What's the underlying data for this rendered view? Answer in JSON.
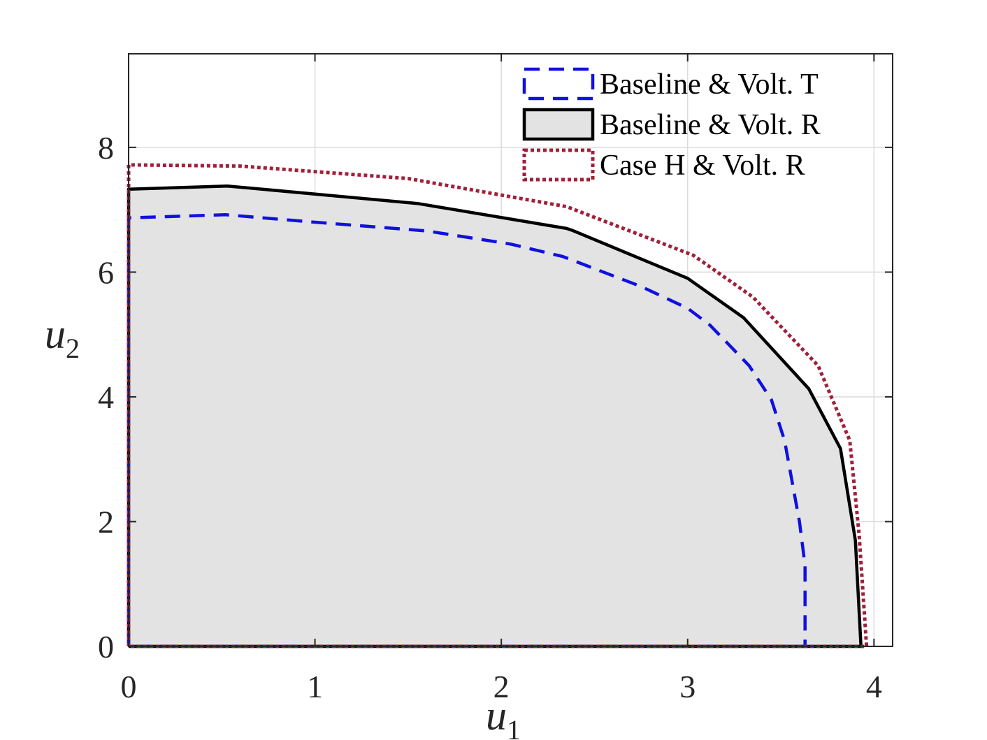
{
  "chart_data": {
    "type": "area",
    "title": "",
    "xlabel": {
      "base": "u",
      "sub": "1"
    },
    "ylabel": {
      "base": "u",
      "sub": "2"
    },
    "xlim": [
      0,
      4.1
    ],
    "ylim": [
      0,
      9.5
    ],
    "xticks": [
      0,
      1,
      2,
      3,
      4
    ],
    "yticks": [
      0,
      2,
      4,
      6,
      8
    ],
    "grid": true,
    "legend_position": "top-right",
    "series": [
      {
        "name": "Baseline & Volt. T",
        "style": "dashed",
        "color": "#1010e0",
        "fill": "none",
        "points": [
          [
            0,
            0
          ],
          [
            0,
            6.87
          ],
          [
            0.52,
            6.92
          ],
          [
            1.0,
            6.8
          ],
          [
            1.6,
            6.66
          ],
          [
            2.05,
            6.45
          ],
          [
            2.33,
            6.25
          ],
          [
            2.75,
            5.77
          ],
          [
            3.0,
            5.42
          ],
          [
            3.12,
            5.15
          ],
          [
            3.33,
            4.5
          ],
          [
            3.45,
            3.95
          ],
          [
            3.52,
            3.3
          ],
          [
            3.6,
            2.0
          ],
          [
            3.63,
            1.3
          ],
          [
            3.63,
            0
          ],
          [
            0,
            0
          ]
        ]
      },
      {
        "name": "Baseline & Volt. R",
        "style": "solid",
        "color": "#000000",
        "fill": "#e3e3e3",
        "points": [
          [
            0,
            0
          ],
          [
            0,
            7.33
          ],
          [
            0.53,
            7.38
          ],
          [
            1.55,
            7.1
          ],
          [
            2.35,
            6.7
          ],
          [
            2.38,
            6.67
          ],
          [
            3.0,
            5.9
          ],
          [
            3.3,
            5.27
          ],
          [
            3.65,
            4.13
          ],
          [
            3.82,
            3.17
          ],
          [
            3.9,
            1.7
          ],
          [
            3.93,
            0
          ],
          [
            0,
            0
          ]
        ]
      },
      {
        "name": "Case H & Volt. R",
        "style": "dotted",
        "color": "#a0203a",
        "fill": "none",
        "points": [
          [
            0,
            0
          ],
          [
            0,
            7.72
          ],
          [
            0.6,
            7.7
          ],
          [
            1.5,
            7.5
          ],
          [
            2.35,
            7.05
          ],
          [
            3.03,
            6.27
          ],
          [
            3.35,
            5.6
          ],
          [
            3.7,
            4.5
          ],
          [
            3.87,
            3.3
          ],
          [
            3.92,
            1.8
          ],
          [
            3.96,
            0
          ],
          [
            0,
            0
          ]
        ]
      }
    ]
  }
}
